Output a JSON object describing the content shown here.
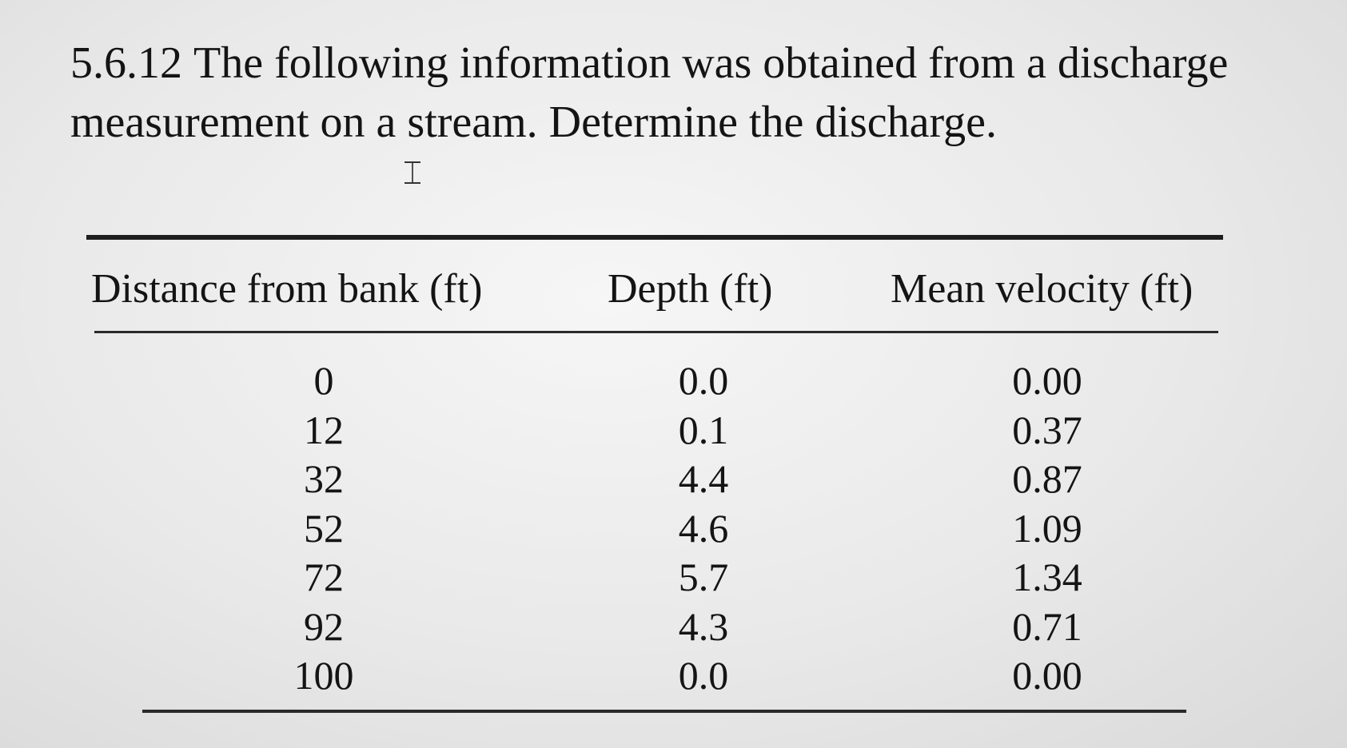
{
  "problem": {
    "number": "5.6.12",
    "text": "The following information was obtained from a discharge measurement on a stream. Determine the discharge."
  },
  "table": {
    "headers": [
      "Distance from bank (ft)",
      "Depth (ft)",
      "Mean velocity (ft)"
    ],
    "columns": {
      "distance": [
        "0",
        "12",
        "32",
        "52",
        "72",
        "92",
        "100"
      ],
      "depth": [
        "0.0",
        "0.1",
        "4.4",
        "4.6",
        "5.7",
        "4.3",
        "0.0"
      ],
      "velocity": [
        "0.00",
        "0.37",
        "0.87",
        "1.09",
        "1.34",
        "0.71",
        "0.00"
      ]
    }
  }
}
